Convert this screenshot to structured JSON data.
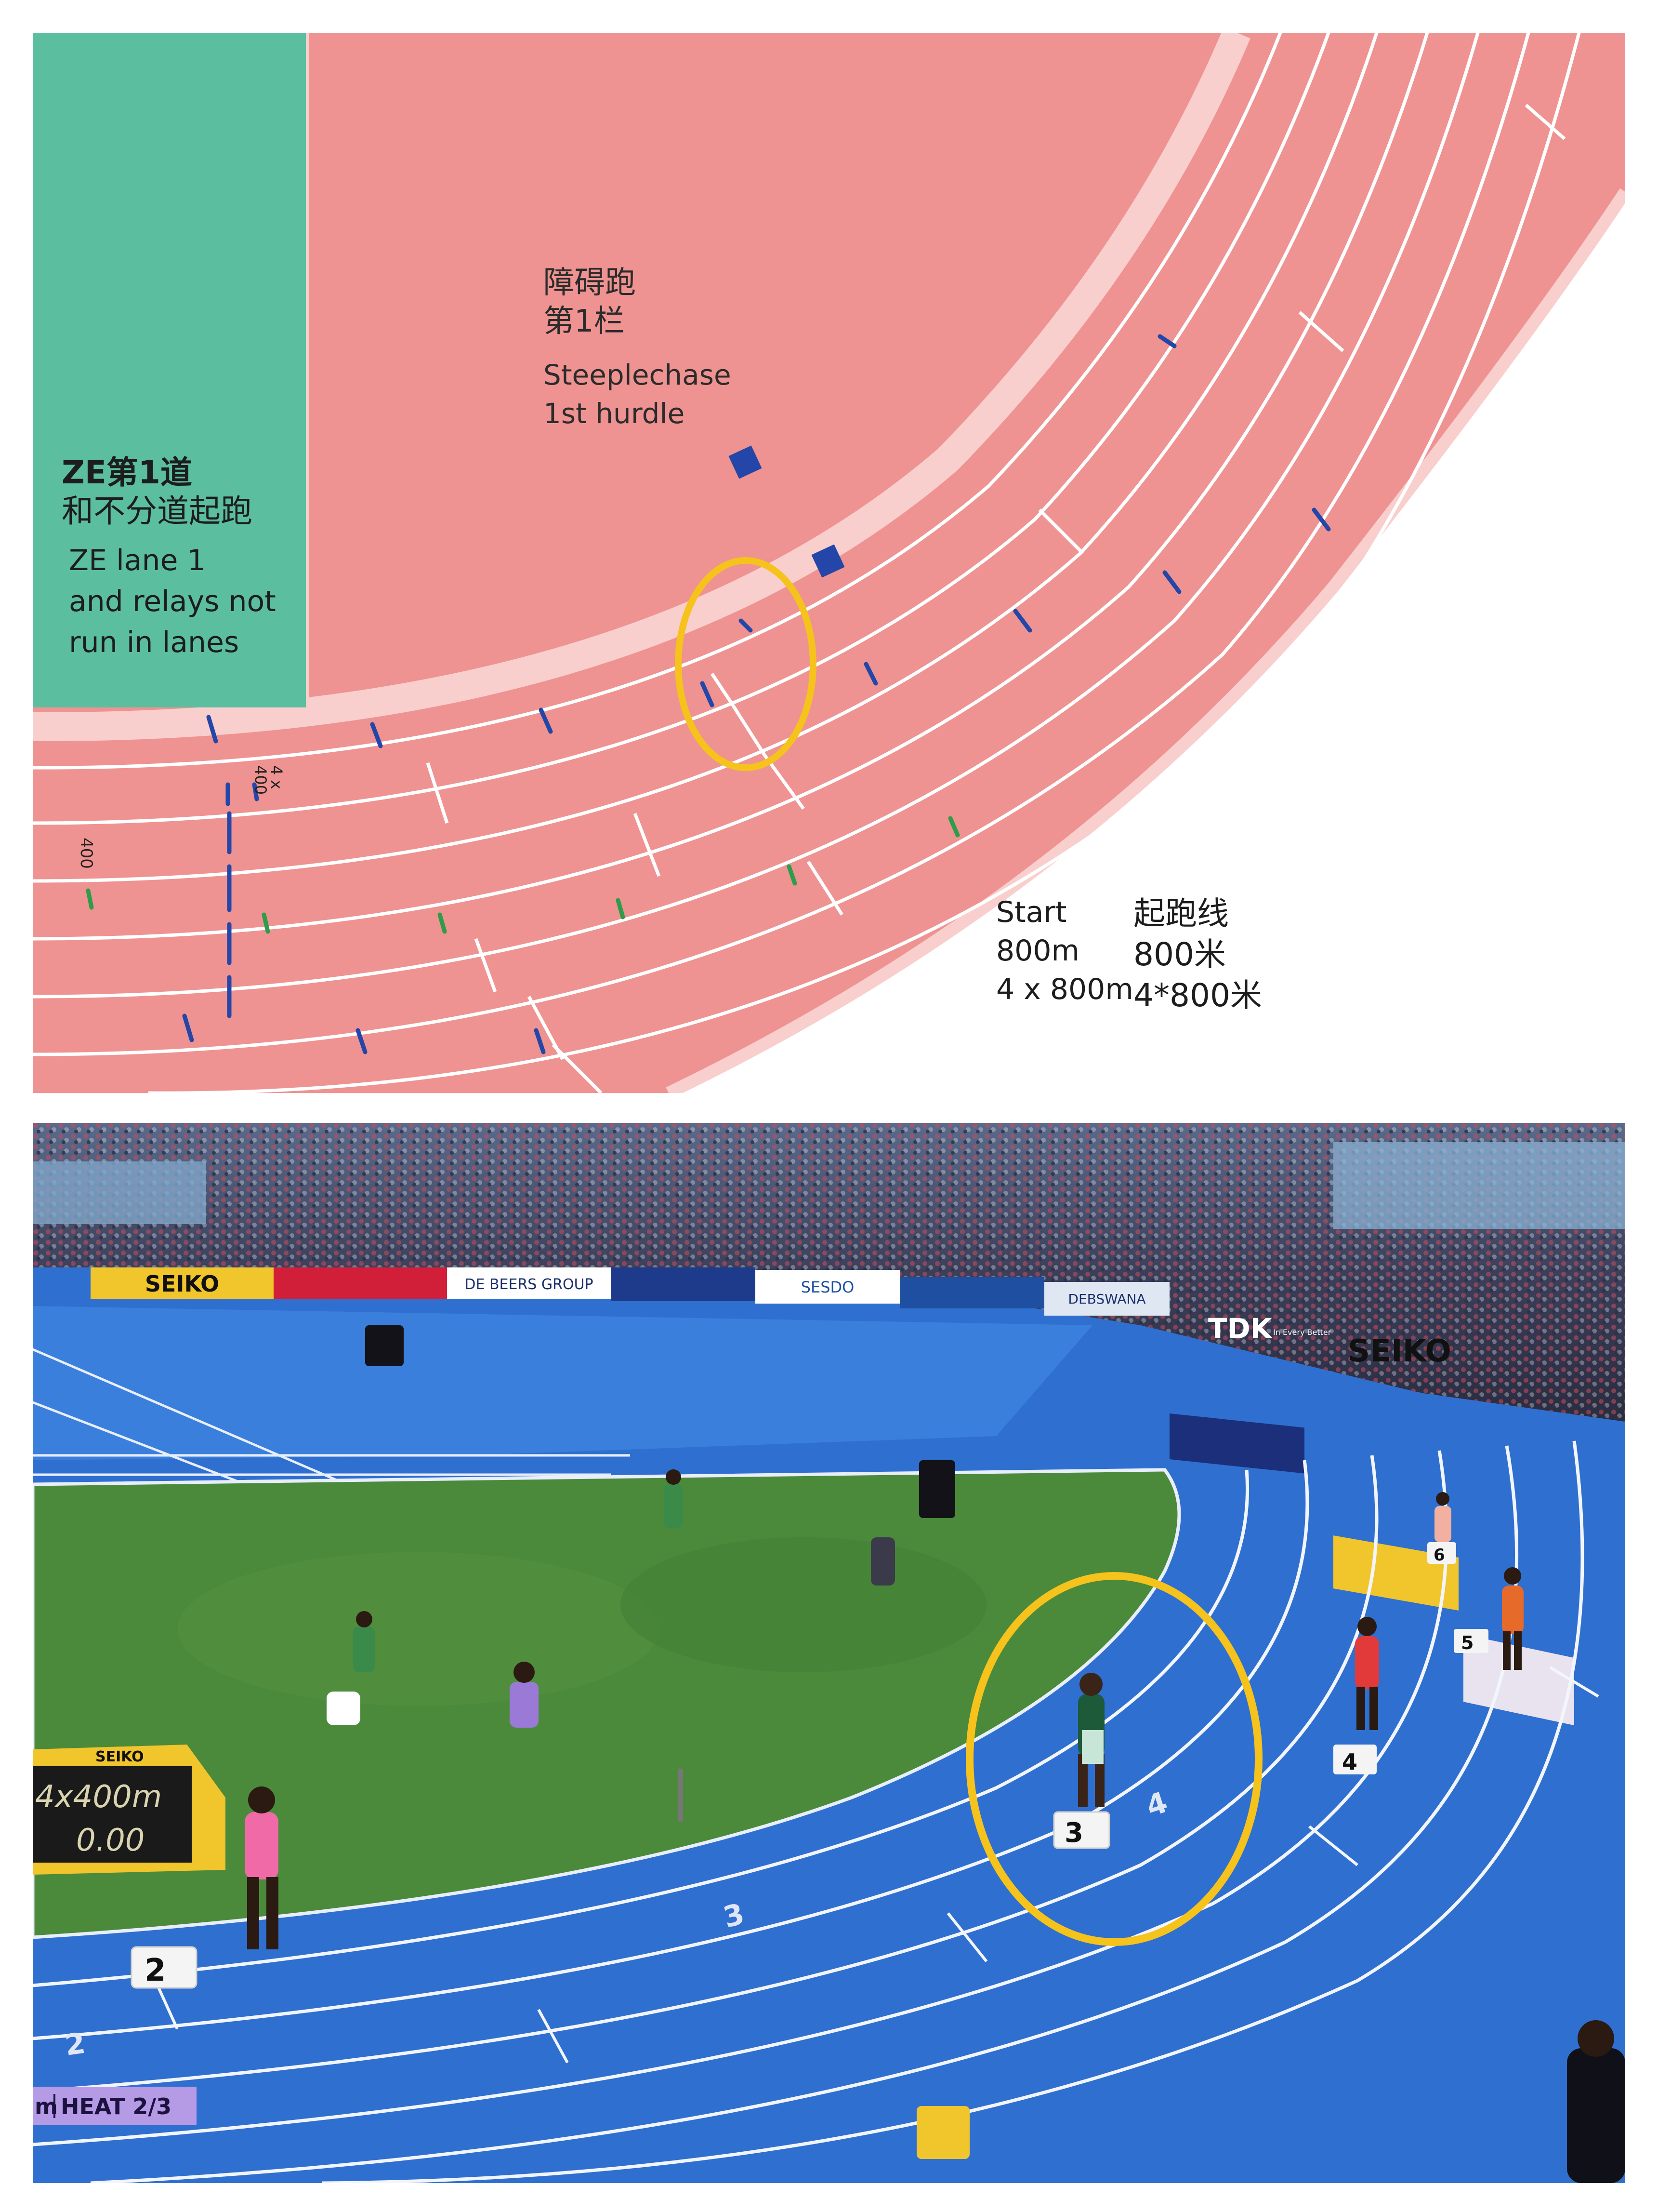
{
  "diagram": {
    "steeplechase": {
      "zh_line1": "障碍跑",
      "zh_line2": "第1栏",
      "en_line1": "Steeplechase",
      "en_line2": "1st hurdle"
    },
    "ze_lane": {
      "zh_line1": "ZE第1道",
      "zh_line2": "和不分道起跑",
      "en_line1": "ZE lane 1",
      "en_line2": "and relays not",
      "en_line3": "run in lanes"
    },
    "start": {
      "en_line1": "Start",
      "en_line2": "800m",
      "en_line3": "4 x 800m",
      "zh_line1": "起跑线",
      "zh_line2": "800米",
      "zh_line3": "4*800米"
    },
    "mark_400": "400",
    "mark_4x400_line1": "4 x",
    "mark_4x400_line2": "400",
    "colors": {
      "infield_green": "#5bbf9f",
      "track": "#ee9391",
      "track_edge": "#f8cfcd",
      "marker_blue": "#2346a8",
      "marker_green": "#2e9c4a",
      "highlight": "#f6c21c"
    }
  },
  "photo": {
    "sponsors": [
      "SEIKO",
      "DE BEERS GROUP",
      "SESDO",
      "DEBSWANA",
      "TDK",
      "SEIKO"
    ],
    "tdk_tagline": "In Every Better",
    "lane_box_numbers": [
      "2",
      "3",
      "4",
      "5",
      "6"
    ],
    "track_lane_numbers": [
      "2",
      "3",
      "4"
    ],
    "scoreboard_brand": "SEIKO",
    "scoreboard_event": "4x400m",
    "scoreboard_time": "0.00",
    "heat_prefix": "m",
    "heat_label": "HEAT 2/3",
    "colors": {
      "track_blue": "#2f6fd0",
      "infield": "#3f7a31",
      "highlight": "#f6c21c",
      "heat_bg": "#b59ae6"
    }
  }
}
